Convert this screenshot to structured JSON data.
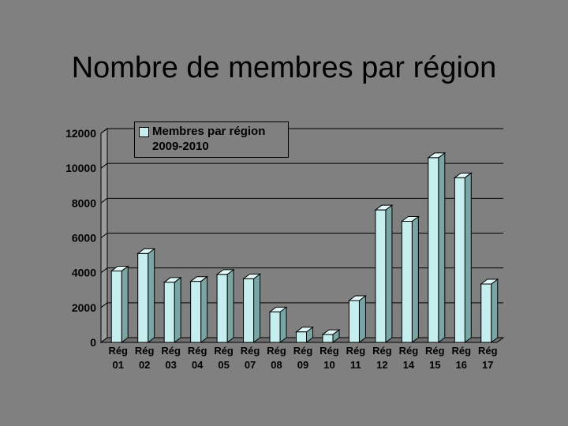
{
  "slide": {
    "title": "Nombre de membres par région"
  },
  "chart_data": {
    "type": "bar",
    "title": "",
    "xlabel": "",
    "ylabel": "",
    "ylim": [
      0,
      12000
    ],
    "yticks": [
      0,
      2000,
      4000,
      6000,
      8000,
      10000,
      12000
    ],
    "grid": true,
    "legend_position": "top-left",
    "categories": [
      [
        "Rég",
        "01"
      ],
      [
        "Rég",
        "02"
      ],
      [
        "Rég",
        "03"
      ],
      [
        "Rég",
        "04"
      ],
      [
        "Rég",
        "05"
      ],
      [
        "Rég",
        "07"
      ],
      [
        "Rég",
        "08"
      ],
      [
        "Rég",
        "09"
      ],
      [
        "Rég",
        "10"
      ],
      [
        "Rég",
        "11"
      ],
      [
        "Rég",
        "12"
      ],
      [
        "Rég",
        "14"
      ],
      [
        "Rég",
        "15"
      ],
      [
        "Rég",
        "16"
      ],
      [
        "Rég",
        "17"
      ]
    ],
    "series": [
      {
        "name": "Membres par région 2009-2010",
        "values": [
          4100,
          5100,
          3450,
          3500,
          3900,
          3650,
          1750,
          600,
          450,
          2400,
          7600,
          6950,
          10600,
          9450,
          3350
        ]
      }
    ],
    "colors": {
      "bar_front": "#c7eeee",
      "bar_side": "#7aa5a5",
      "bar_top": "#e2f8f8",
      "wall_side": "#9c9c9c",
      "floor": "#6e6e6e",
      "gridline": "#000000"
    }
  }
}
